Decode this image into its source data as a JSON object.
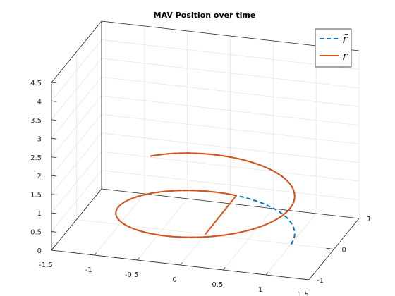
{
  "chart_data": {
    "type": "line",
    "title": "MAV Position over time",
    "xlabel": "",
    "ylabel": "",
    "zlabel": "",
    "xlim": [
      -1.5,
      1.5
    ],
    "ylim": [
      -1,
      1
    ],
    "zlim": [
      0,
      4.5
    ],
    "x_ticks": [
      "-1.5",
      "-1",
      "-0.5",
      "0",
      "0.5",
      "1",
      "1.5"
    ],
    "y_ticks": [
      "-1",
      "0",
      "1"
    ],
    "z_ticks": [
      "0",
      "0.5",
      "1",
      "1.5",
      "2",
      "2.5",
      "3",
      "3.5",
      "4",
      "4.5"
    ],
    "grid": true,
    "legend_position": "top-right",
    "series": [
      {
        "name": "r̄",
        "style": "dashed",
        "color": "#0072bd",
        "parametric": {
          "x": "cos(t)",
          "y": "sin(t)",
          "z": "t/(2*pi)",
          "t_range": [
            0,
            8.8
          ]
        }
      },
      {
        "name": "r",
        "style": "solid",
        "color": "#d95319",
        "parametric": {
          "x": "cos(t)",
          "y": "sin(t)",
          "z": "t/(2*pi)",
          "t_range": [
            1.5,
            8.8
          ],
          "start_point": [
            0,
            0,
            0
          ]
        }
      }
    ]
  }
}
